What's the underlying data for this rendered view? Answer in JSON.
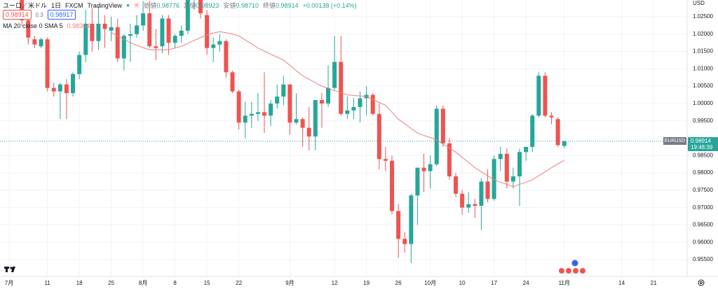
{
  "chart_data": {
    "type": "candlestick",
    "title": "ユーロ／米ドル",
    "interval": "1日",
    "source": "FXCM",
    "platform": "TradingView",
    "currency": "USD",
    "bid": 0.98914,
    "spread": 0.3,
    "ask": 0.98917,
    "ohlc_legend": {
      "names": [
        "始値",
        "高値",
        "安値",
        "終値"
      ],
      "values": [
        0.98776,
        0.98923,
        0.9871,
        0.98914
      ],
      "value_labels": [
        "0.98776",
        "0.98923",
        "0.98710",
        "0.98914"
      ]
    },
    "change": "+0.00138 (+0.14%)",
    "symbol": "EURUSD",
    "last_price_label": "0.98914",
    "countdown": "19:48:39",
    "up_color": "#26a69a",
    "down_color": "#ef5350",
    "categories": [
      "07-01",
      "07-04",
      "07-05",
      "07-06",
      "07-07",
      "07-08",
      "07-11",
      "07-12",
      "07-13",
      "07-14",
      "07-15",
      "07-18",
      "07-19",
      "07-20",
      "07-21",
      "07-22",
      "07-25",
      "07-26",
      "07-27",
      "07-28",
      "07-29",
      "08-01",
      "08-02",
      "08-03",
      "08-04",
      "08-05",
      "08-08",
      "08-09",
      "08-10",
      "08-11",
      "08-12",
      "08-15",
      "08-16",
      "08-17",
      "08-18",
      "08-19",
      "08-22",
      "08-23",
      "08-24",
      "08-25",
      "08-26",
      "08-29",
      "08-30",
      "08-31",
      "09-01",
      "09-02",
      "09-05",
      "09-06",
      "09-07",
      "09-08",
      "09-09",
      "09-12",
      "09-13",
      "09-14",
      "09-15",
      "09-16",
      "09-19",
      "09-20",
      "09-21",
      "09-22",
      "09-23",
      "09-26",
      "09-27",
      "09-28",
      "09-29",
      "09-30",
      "10-03",
      "10-04",
      "10-05",
      "10-06",
      "10-07",
      "10-10",
      "10-11",
      "10-12",
      "10-13",
      "10-14",
      "10-17",
      "10-18",
      "10-19",
      "10-20",
      "10-21",
      "10-24",
      "10-25",
      "10-26",
      "10-27",
      "10-28",
      "10-31",
      "11-01"
    ],
    "open": [
      1.048,
      1.0425,
      1.03,
      1.024,
      1.0185,
      1.0165,
      1.0185,
      1.0045,
      1.0035,
      1.0055,
      1.003,
      1.0085,
      1.014,
      1.023,
      1.018,
      1.023,
      1.021,
      1.022,
      1.013,
      1.0195,
      1.02,
      1.0225,
      1.026,
      1.0165,
      1.0165,
      1.0245,
      1.0175,
      1.0195,
      1.021,
      1.03,
      1.032,
      1.0255,
      1.016,
      1.017,
      1.018,
      1.009,
      1.0035,
      0.9945,
      0.9965,
      0.997,
      0.9975,
      0.9965,
      1.0,
      1.002,
      1.0055,
      0.9945,
      0.9955,
      0.993,
      0.9905,
      1.001,
      1.0,
      1.0045,
      1.012,
      0.997,
      0.998,
      0.999,
      1.0015,
      1.0025,
      0.997,
      0.984,
      0.9835,
      0.969,
      0.961,
      0.9595,
      0.9735,
      0.9815,
      0.9805,
      0.9825,
      0.9985,
      0.9885,
      0.979,
      0.974,
      0.97,
      0.971,
      0.9705,
      0.9775,
      0.9725,
      0.984,
      0.9855,
      0.9775,
      0.979,
      0.986,
      0.9875,
      0.9965,
      1.008,
      0.9965,
      0.9955,
      0.98776
    ],
    "high": [
      1.0485,
      1.046,
      1.033,
      1.026,
      1.0195,
      1.019,
      1.019,
      1.006,
      1.006,
      1.007,
      1.009,
      1.015,
      1.027,
      1.0275,
      1.028,
      1.0255,
      1.025,
      1.0245,
      1.02,
      1.023,
      1.0255,
      1.0295,
      1.0295,
      1.0215,
      1.0255,
      1.0255,
      1.02,
      1.0225,
      1.03,
      1.036,
      1.033,
      1.027,
      1.019,
      1.02,
      1.0185,
      1.0095,
      1.004,
      1.0005,
      1.0005,
      1.003,
      1.009,
      1.001,
      1.0055,
      1.008,
      1.0055,
      1.003,
      0.996,
      0.999,
      1.001,
      1.003,
      1.011,
      1.0195,
      1.0195,
      1.002,
      1.0015,
      1.0035,
      1.005,
      1.003,
      1.0,
      0.9875,
      0.985,
      0.971,
      0.963,
      0.974,
      0.9815,
      0.9855,
      0.985,
      0.9995,
      0.9995,
      0.99,
      0.98,
      0.975,
      0.9745,
      0.9725,
      0.9785,
      0.981,
      0.985,
      0.9875,
      0.987,
      0.9815,
      0.987,
      0.9875,
      0.997,
      1.009,
      1.009,
      0.9975,
      0.996,
      0.98923
    ],
    "low": [
      1.0365,
      1.041,
      1.0225,
      1.017,
      1.016,
      1.016,
      1.0035,
      1.002,
      0.9955,
      0.9955,
      1.002,
      1.007,
      1.012,
      1.015,
      1.0155,
      1.016,
      1.018,
      1.012,
      1.0095,
      1.012,
      1.019,
      1.021,
      1.016,
      1.0125,
      1.0145,
      1.014,
      1.016,
      1.0175,
      1.02,
      1.027,
      1.0245,
      1.014,
      1.012,
      1.015,
      1.0075,
      1.003,
      0.9925,
      0.99,
      0.993,
      0.995,
      0.9915,
      0.9935,
      0.9985,
      0.9995,
      0.991,
      0.994,
      0.9875,
      0.9865,
      0.9865,
      0.993,
      0.999,
      1.004,
      0.9965,
      0.9955,
      0.9955,
      0.9945,
      0.9965,
      0.9965,
      0.981,
      0.9805,
      0.968,
      0.9555,
      0.957,
      0.954,
      0.965,
      0.9745,
      0.9755,
      0.982,
      0.9875,
      0.978,
      0.973,
      0.968,
      0.9685,
      0.967,
      0.9635,
      0.9715,
      0.972,
      0.9805,
      0.9755,
      0.9755,
      0.9705,
      0.9835,
      0.986,
      0.996,
      0.996,
      0.994,
      0.9875,
      0.9871
    ],
    "close": [
      1.0425,
      1.0425,
      1.024,
      1.019,
      1.017,
      1.0185,
      1.0045,
      1.0035,
      1.0055,
      1.003,
      1.0085,
      1.014,
      1.023,
      1.018,
      1.023,
      1.0215,
      1.022,
      1.013,
      1.0195,
      1.02,
      1.0225,
      1.026,
      1.0165,
      1.016,
      1.0245,
      1.0175,
      1.0195,
      1.021,
      1.03,
      1.032,
      1.026,
      1.016,
      1.017,
      1.018,
      1.009,
      1.0035,
      0.9945,
      0.9965,
      0.997,
      0.9975,
      0.9965,
      1.0,
      1.002,
      1.0055,
      0.9945,
      0.9955,
      0.993,
      0.9905,
      1.001,
      1.0,
      1.0045,
      1.012,
      0.997,
      0.998,
      0.999,
      1.0015,
      1.0025,
      0.997,
      0.984,
      0.9835,
      0.969,
      0.961,
      0.9595,
      0.9735,
      0.9815,
      0.9805,
      0.9825,
      0.9985,
      0.9885,
      0.979,
      0.974,
      0.97,
      0.971,
      0.9705,
      0.9775,
      0.9725,
      0.984,
      0.9855,
      0.9775,
      0.979,
      0.986,
      0.9875,
      0.9965,
      1.008,
      0.9965,
      0.996,
      0.988,
      0.98914
    ],
    "ma": {
      "name": "MA 20 close 0 SMA 5",
      "color": "#f07c7c",
      "values": [
        null,
        null,
        null,
        null,
        null,
        null,
        null,
        null,
        null,
        null,
        null,
        null,
        null,
        null,
        null,
        null,
        1.0205,
        1.0195,
        1.0185,
        1.0175,
        1.0168,
        1.0161,
        1.0155,
        1.0155,
        1.0155,
        1.0155,
        1.016,
        1.0165,
        1.0173,
        1.0182,
        1.019,
        1.0197,
        1.0203,
        1.0207,
        1.0204,
        1.02,
        1.0195,
        1.0183,
        1.0172,
        1.016,
        1.0151,
        1.0142,
        1.0134,
        1.0125,
        1.011,
        1.0095,
        1.008,
        1.007,
        1.006,
        1.005,
        1.0044,
        1.0037,
        1.0031,
        1.0025,
        1.0023,
        1.0022,
        1.002,
        1.0012,
        1.0003,
        0.9995,
        0.9975,
        0.9955,
        0.9942,
        0.9928,
        0.9915,
        0.9908,
        0.9902,
        0.9895,
        0.9883,
        0.9872,
        0.986,
        0.9845,
        0.983,
        0.9815,
        0.9803,
        0.9792,
        0.978,
        0.9773,
        0.9767,
        0.976,
        0.9767,
        0.9773,
        0.978,
        0.9792,
        0.9803,
        0.9815,
        0.9826,
        0.98364
      ]
    },
    "ylim": [
      0.95016,
      1.02984
    ],
    "yticks": [
      {
        "value": 1.025,
        "label": "1.02500"
      },
      {
        "value": 1.02,
        "label": "1.02000"
      },
      {
        "value": 1.015,
        "label": "1.01500"
      },
      {
        "value": 1.01,
        "label": "1.01000"
      },
      {
        "value": 1.005,
        "label": "1.00500"
      },
      {
        "value": 1.0,
        "label": "1.00000"
      },
      {
        "value": 0.995,
        "label": "0.99500"
      },
      {
        "value": 0.985,
        "label": "0.98500"
      },
      {
        "value": 0.98,
        "label": "0.98000"
      },
      {
        "value": 0.975,
        "label": "0.97500"
      },
      {
        "value": 0.97,
        "label": "0.97000"
      },
      {
        "value": 0.965,
        "label": "0.96500"
      },
      {
        "value": 0.96,
        "label": "0.96000"
      },
      {
        "value": 0.955,
        "label": "0.95500"
      }
    ],
    "xlim": [
      -1.43,
      106.26
    ],
    "xticks": [
      {
        "value": 0,
        "label": "7月"
      },
      {
        "value": 6,
        "label": "11"
      },
      {
        "value": 11,
        "label": "18"
      },
      {
        "value": 16,
        "label": "25"
      },
      {
        "value": 21,
        "label": "8月"
      },
      {
        "value": 26,
        "label": "8"
      },
      {
        "value": 31,
        "label": "15"
      },
      {
        "value": 36,
        "label": "22"
      },
      {
        "value": 44,
        "label": "9月"
      },
      {
        "value": 51,
        "label": "12"
      },
      {
        "value": 56,
        "label": "19"
      },
      {
        "value": 61,
        "label": "26"
      },
      {
        "value": 66,
        "label": "10月"
      },
      {
        "value": 71,
        "label": "10"
      },
      {
        "value": 76,
        "label": "17"
      },
      {
        "value": 81,
        "label": "24"
      },
      {
        "value": 87,
        "label": "11月"
      },
      {
        "value": 96,
        "label": "14"
      },
      {
        "value": 101,
        "label": "21"
      }
    ],
    "grid": true
  }
}
